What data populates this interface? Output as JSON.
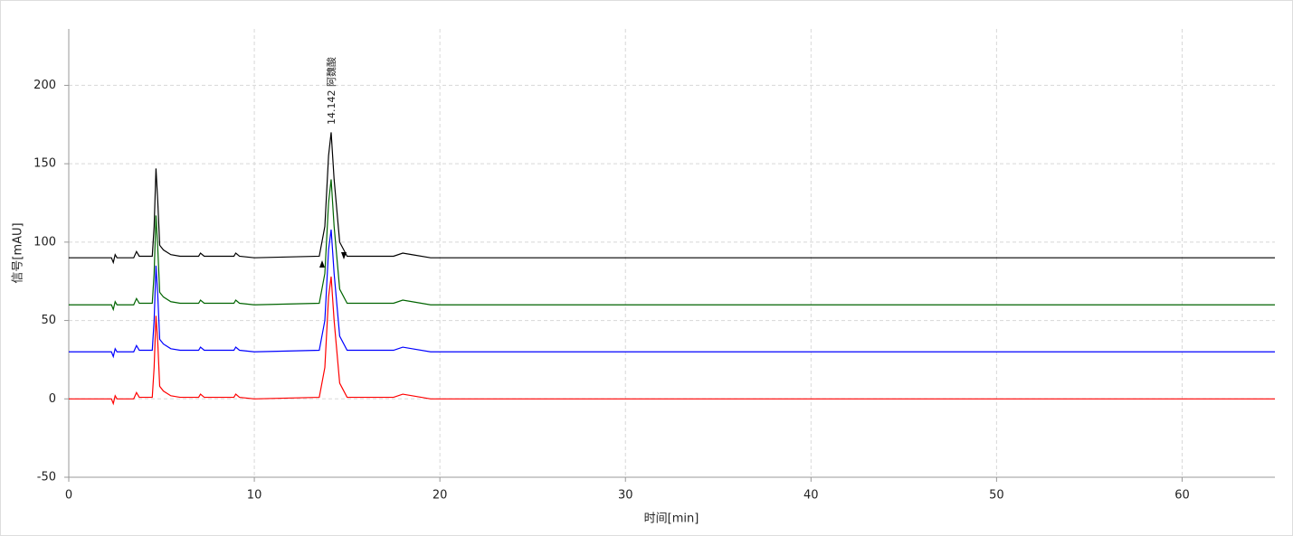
{
  "chart_data": {
    "type": "line",
    "xlabel": "时间[min]",
    "ylabel": "信号[mAU]",
    "x": [
      0,
      2.3,
      2.4,
      2.5,
      2.6,
      3.5,
      3.65,
      3.8,
      4.5,
      4.6,
      4.7,
      4.8,
      4.9,
      5.1,
      5.5,
      6.0,
      7.0,
      7.1,
      7.3,
      8.0,
      8.9,
      9.0,
      9.2,
      10,
      13.5,
      13.8,
      14.0,
      14.14,
      14.3,
      14.6,
      15.0,
      17.5,
      18.0,
      18.5,
      19.5,
      65
    ],
    "series": [
      {
        "color": "#000000",
        "values": [
          90,
          90,
          87,
          92,
          90,
          90,
          94,
          91,
          91,
          110,
          147,
          125,
          98,
          95,
          92,
          91,
          91,
          93,
          91,
          91,
          91,
          93,
          91,
          90,
          91,
          110,
          155,
          170,
          140,
          100,
          91,
          91,
          93,
          92,
          90,
          90
        ]
      },
      {
        "color": "#006400",
        "values": [
          60,
          60,
          57,
          62,
          60,
          60,
          64,
          61,
          61,
          80,
          117,
          95,
          68,
          65,
          62,
          61,
          61,
          63,
          61,
          61,
          61,
          63,
          61,
          60,
          61,
          80,
          125,
          140,
          110,
          70,
          61,
          61,
          63,
          62,
          60,
          60
        ]
      },
      {
        "color": "#0000ff",
        "values": [
          30,
          30,
          27,
          32,
          30,
          30,
          34,
          31,
          31,
          50,
          85,
          65,
          38,
          35,
          32,
          31,
          31,
          33,
          31,
          31,
          31,
          33,
          31,
          30,
          31,
          50,
          95,
          108,
          80,
          40,
          31,
          31,
          33,
          32,
          30,
          30
        ]
      },
      {
        "color": "#ff0000",
        "values": [
          0,
          0,
          -3,
          2,
          0,
          0,
          4,
          1,
          1,
          20,
          53,
          35,
          8,
          5,
          2,
          1,
          1,
          3,
          1,
          1,
          1,
          3,
          1,
          0,
          1,
          20,
          65,
          78,
          50,
          10,
          1,
          1,
          3,
          2,
          0,
          0
        ]
      }
    ],
    "annotations": [
      {
        "x": 14.142,
        "label": "阿魏酸"
      }
    ],
    "xlim": [
      0,
      65
    ],
    "xticks": [
      0,
      10,
      20,
      30,
      40,
      50,
      60
    ],
    "ylim": [
      -50,
      236
    ],
    "yticks": [
      -50,
      0,
      50,
      100,
      150,
      200
    ],
    "grid": true
  }
}
